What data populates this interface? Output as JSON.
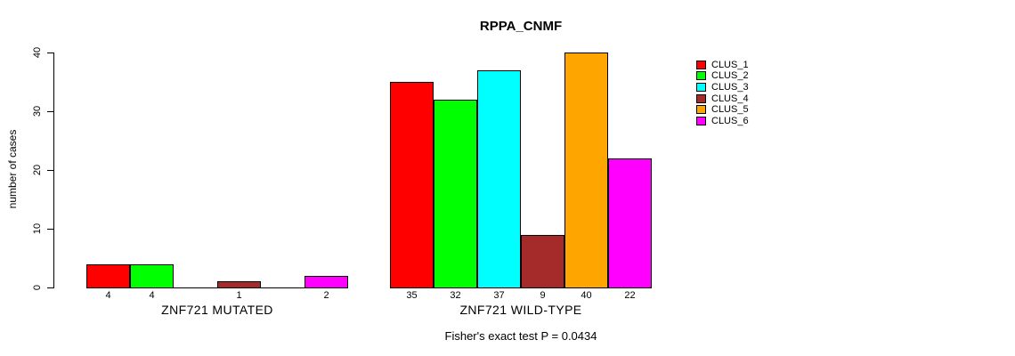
{
  "chart_data": {
    "type": "bar",
    "title": "RPPA_CNMF",
    "ylabel": "number of cases",
    "xlabel": "",
    "ylim": [
      0,
      40
    ],
    "yticks": [
      0,
      10,
      20,
      30,
      40
    ],
    "grid": false,
    "legend_position": "right-top",
    "clusters": [
      {
        "name": "CLUS_1",
        "color": "#FF0000"
      },
      {
        "name": "CLUS_2",
        "color": "#00FF00"
      },
      {
        "name": "CLUS_3",
        "color": "#00FFFF"
      },
      {
        "name": "CLUS_4",
        "color": "#A52A2A"
      },
      {
        "name": "CLUS_5",
        "color": "#FFA500"
      },
      {
        "name": "CLUS_6",
        "color": "#FF00FF"
      }
    ],
    "groups": [
      {
        "label": "ZNF721 MUTATED",
        "values": [
          4,
          4,
          0,
          1,
          0,
          2
        ]
      },
      {
        "label": "ZNF721 WILD-TYPE",
        "values": [
          35,
          32,
          37,
          9,
          40,
          22
        ]
      }
    ],
    "bar_value_labels_shown": "non-zero values printed under each bar",
    "footnote": "Fisher's exact test P = 0.0434"
  }
}
